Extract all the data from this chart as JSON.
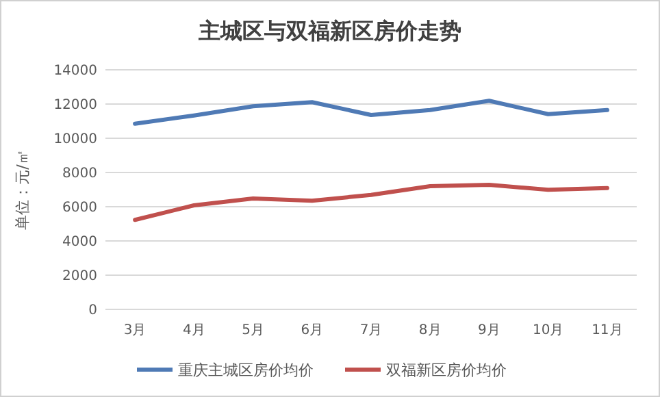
{
  "chart_data": {
    "type": "line",
    "title": "主城区与双福新区房价走势",
    "ylabel": "单位：元/㎡",
    "categories": [
      "3月",
      "4月",
      "5月",
      "6月",
      "7月",
      "8月",
      "9月",
      "10月",
      "11月"
    ],
    "series": [
      {
        "name": "重庆主城区房价均价",
        "color": "#4f7ab5",
        "values": [
          10850,
          11330,
          11870,
          12110,
          11360,
          11650,
          12190,
          11410,
          11650
        ]
      },
      {
        "name": "双福新区房价均价",
        "color": "#c0504d",
        "values": [
          5230,
          6080,
          6480,
          6350,
          6690,
          7200,
          7280,
          6990,
          7090
        ]
      }
    ],
    "ylim": [
      0,
      14000
    ],
    "yticks": [
      0,
      2000,
      4000,
      6000,
      8000,
      10000,
      12000,
      14000
    ],
    "grid": "y",
    "legend": "bottom",
    "marker": "none",
    "line_style": "solid"
  }
}
